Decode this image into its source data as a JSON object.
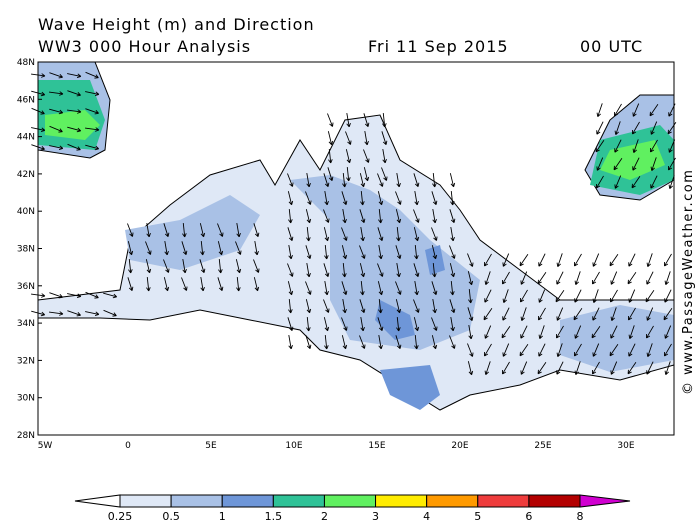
{
  "header": {
    "title": "Wave Height (m) and Direction",
    "subtitle": "WW3 000 Hour Analysis",
    "date": "Fri 11 Sep 2015",
    "time": "00 UTC"
  },
  "map": {
    "lat_labels": [
      "48N",
      "46N",
      "44N",
      "42N",
      "40N",
      "38N",
      "36N",
      "34N",
      "32N",
      "30N",
      "28N"
    ],
    "lon_labels": [
      "5W",
      "0",
      "5E",
      "10E",
      "15E",
      "20E",
      "25E",
      "30E"
    ]
  },
  "legend": {
    "labels": [
      "0.25",
      "0.5",
      "1",
      "1.5",
      "2",
      "3",
      "4",
      "5",
      "6",
      "8"
    ],
    "colors": [
      "#ffffff",
      "#dfe8f6",
      "#a9c1e6",
      "#6e96d8",
      "#2fc297",
      "#60f060",
      "#ffec00",
      "#ff9a00",
      "#ee3c3c",
      "#b30000",
      "#d000d0"
    ]
  },
  "credit": "© www.PassageWeather.com"
}
